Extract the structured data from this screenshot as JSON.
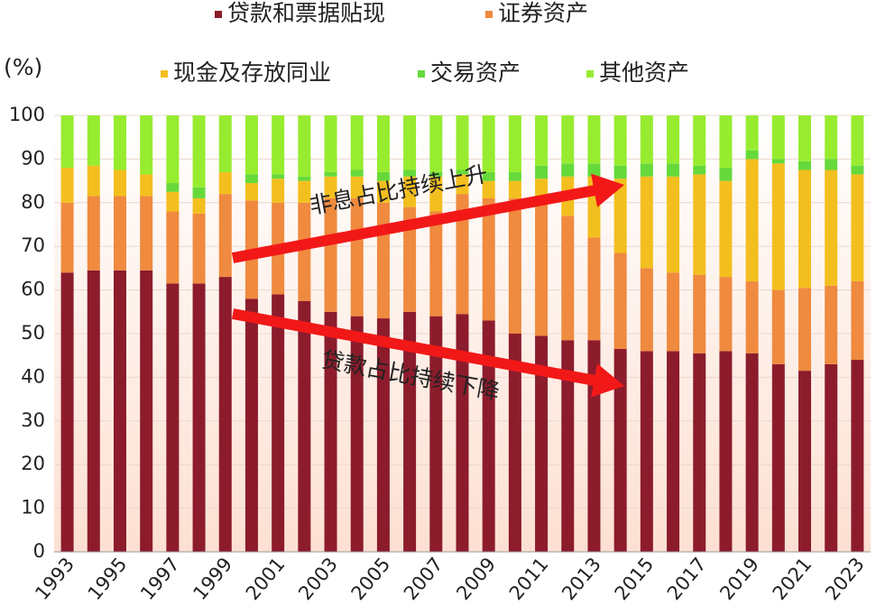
{
  "chart_data": {
    "type": "stacked_bar",
    "unit_label": "(%)",
    "categories": [
      "1993",
      null,
      "1995",
      null,
      "1997",
      null,
      "1999",
      null,
      "2001",
      null,
      "2003",
      null,
      "2005",
      null,
      "2007",
      null,
      "2009",
      null,
      "2011",
      null,
      "2013",
      null,
      "2015",
      null,
      "2017",
      null,
      "2019",
      null,
      "2021",
      null,
      "2023"
    ],
    "series": [
      {
        "name": "贷款和票据贴现",
        "color": "#8c1c2c",
        "values": [
          64,
          64.5,
          64.5,
          64.5,
          61.5,
          61.5,
          63,
          58,
          59,
          57.5,
          55,
          54,
          53.5,
          55,
          54,
          54.5,
          53,
          50,
          49.5,
          48.5,
          48.5,
          46.5,
          46,
          46,
          45.5,
          46,
          45.5,
          43,
          41.5,
          43,
          44
        ]
      },
      {
        "name": "证券资产",
        "color": "#ef8a3f",
        "values": [
          16,
          17,
          17,
          17,
          16.5,
          16,
          19,
          22.5,
          21,
          22.5,
          26,
          27,
          26.5,
          24,
          24,
          27.5,
          28,
          31,
          31.5,
          28.5,
          23.5,
          22,
          19,
          18,
          18,
          17,
          16.5,
          17,
          19,
          18,
          18
        ]
      },
      {
        "name": "现金及存放同业",
        "color": "#f3bf1f",
        "values": [
          8,
          7,
          6,
          5,
          4.5,
          3.5,
          5,
          4,
          5.5,
          5,
          5,
          5,
          5,
          7,
          8,
          4.5,
          4,
          4,
          4.5,
          9,
          14,
          17,
          21,
          22,
          23,
          22,
          28,
          29,
          27,
          26.5,
          24.5
        ]
      },
      {
        "name": "交易资产",
        "color": "#66d93a",
        "values": [
          0,
          0,
          0,
          0,
          2,
          2.5,
          0,
          2,
          1,
          1,
          1,
          1.5,
          2,
          1.5,
          1,
          1,
          2,
          2,
          3,
          3,
          3,
          3,
          3,
          3,
          2,
          3,
          2,
          1,
          2,
          2.5,
          2
        ]
      },
      {
        "name": "其他资产",
        "color": "#97ec2f",
        "values": [
          12,
          11.5,
          12.5,
          13.5,
          15.5,
          16.5,
          13,
          13.5,
          13.5,
          14,
          13,
          12.5,
          13,
          12.5,
          13,
          12.5,
          13,
          13,
          11.5,
          11,
          11,
          11.5,
          11,
          11,
          11.5,
          12,
          8,
          10,
          10.5,
          10,
          11.5
        ]
      }
    ],
    "ylim": [
      0,
      100
    ],
    "yticks": [
      0,
      10,
      20,
      30,
      40,
      50,
      60,
      70,
      80,
      90,
      100
    ],
    "grid": true,
    "annotations": [
      "非息占比持续上升",
      "贷款占比持续下降"
    ]
  }
}
